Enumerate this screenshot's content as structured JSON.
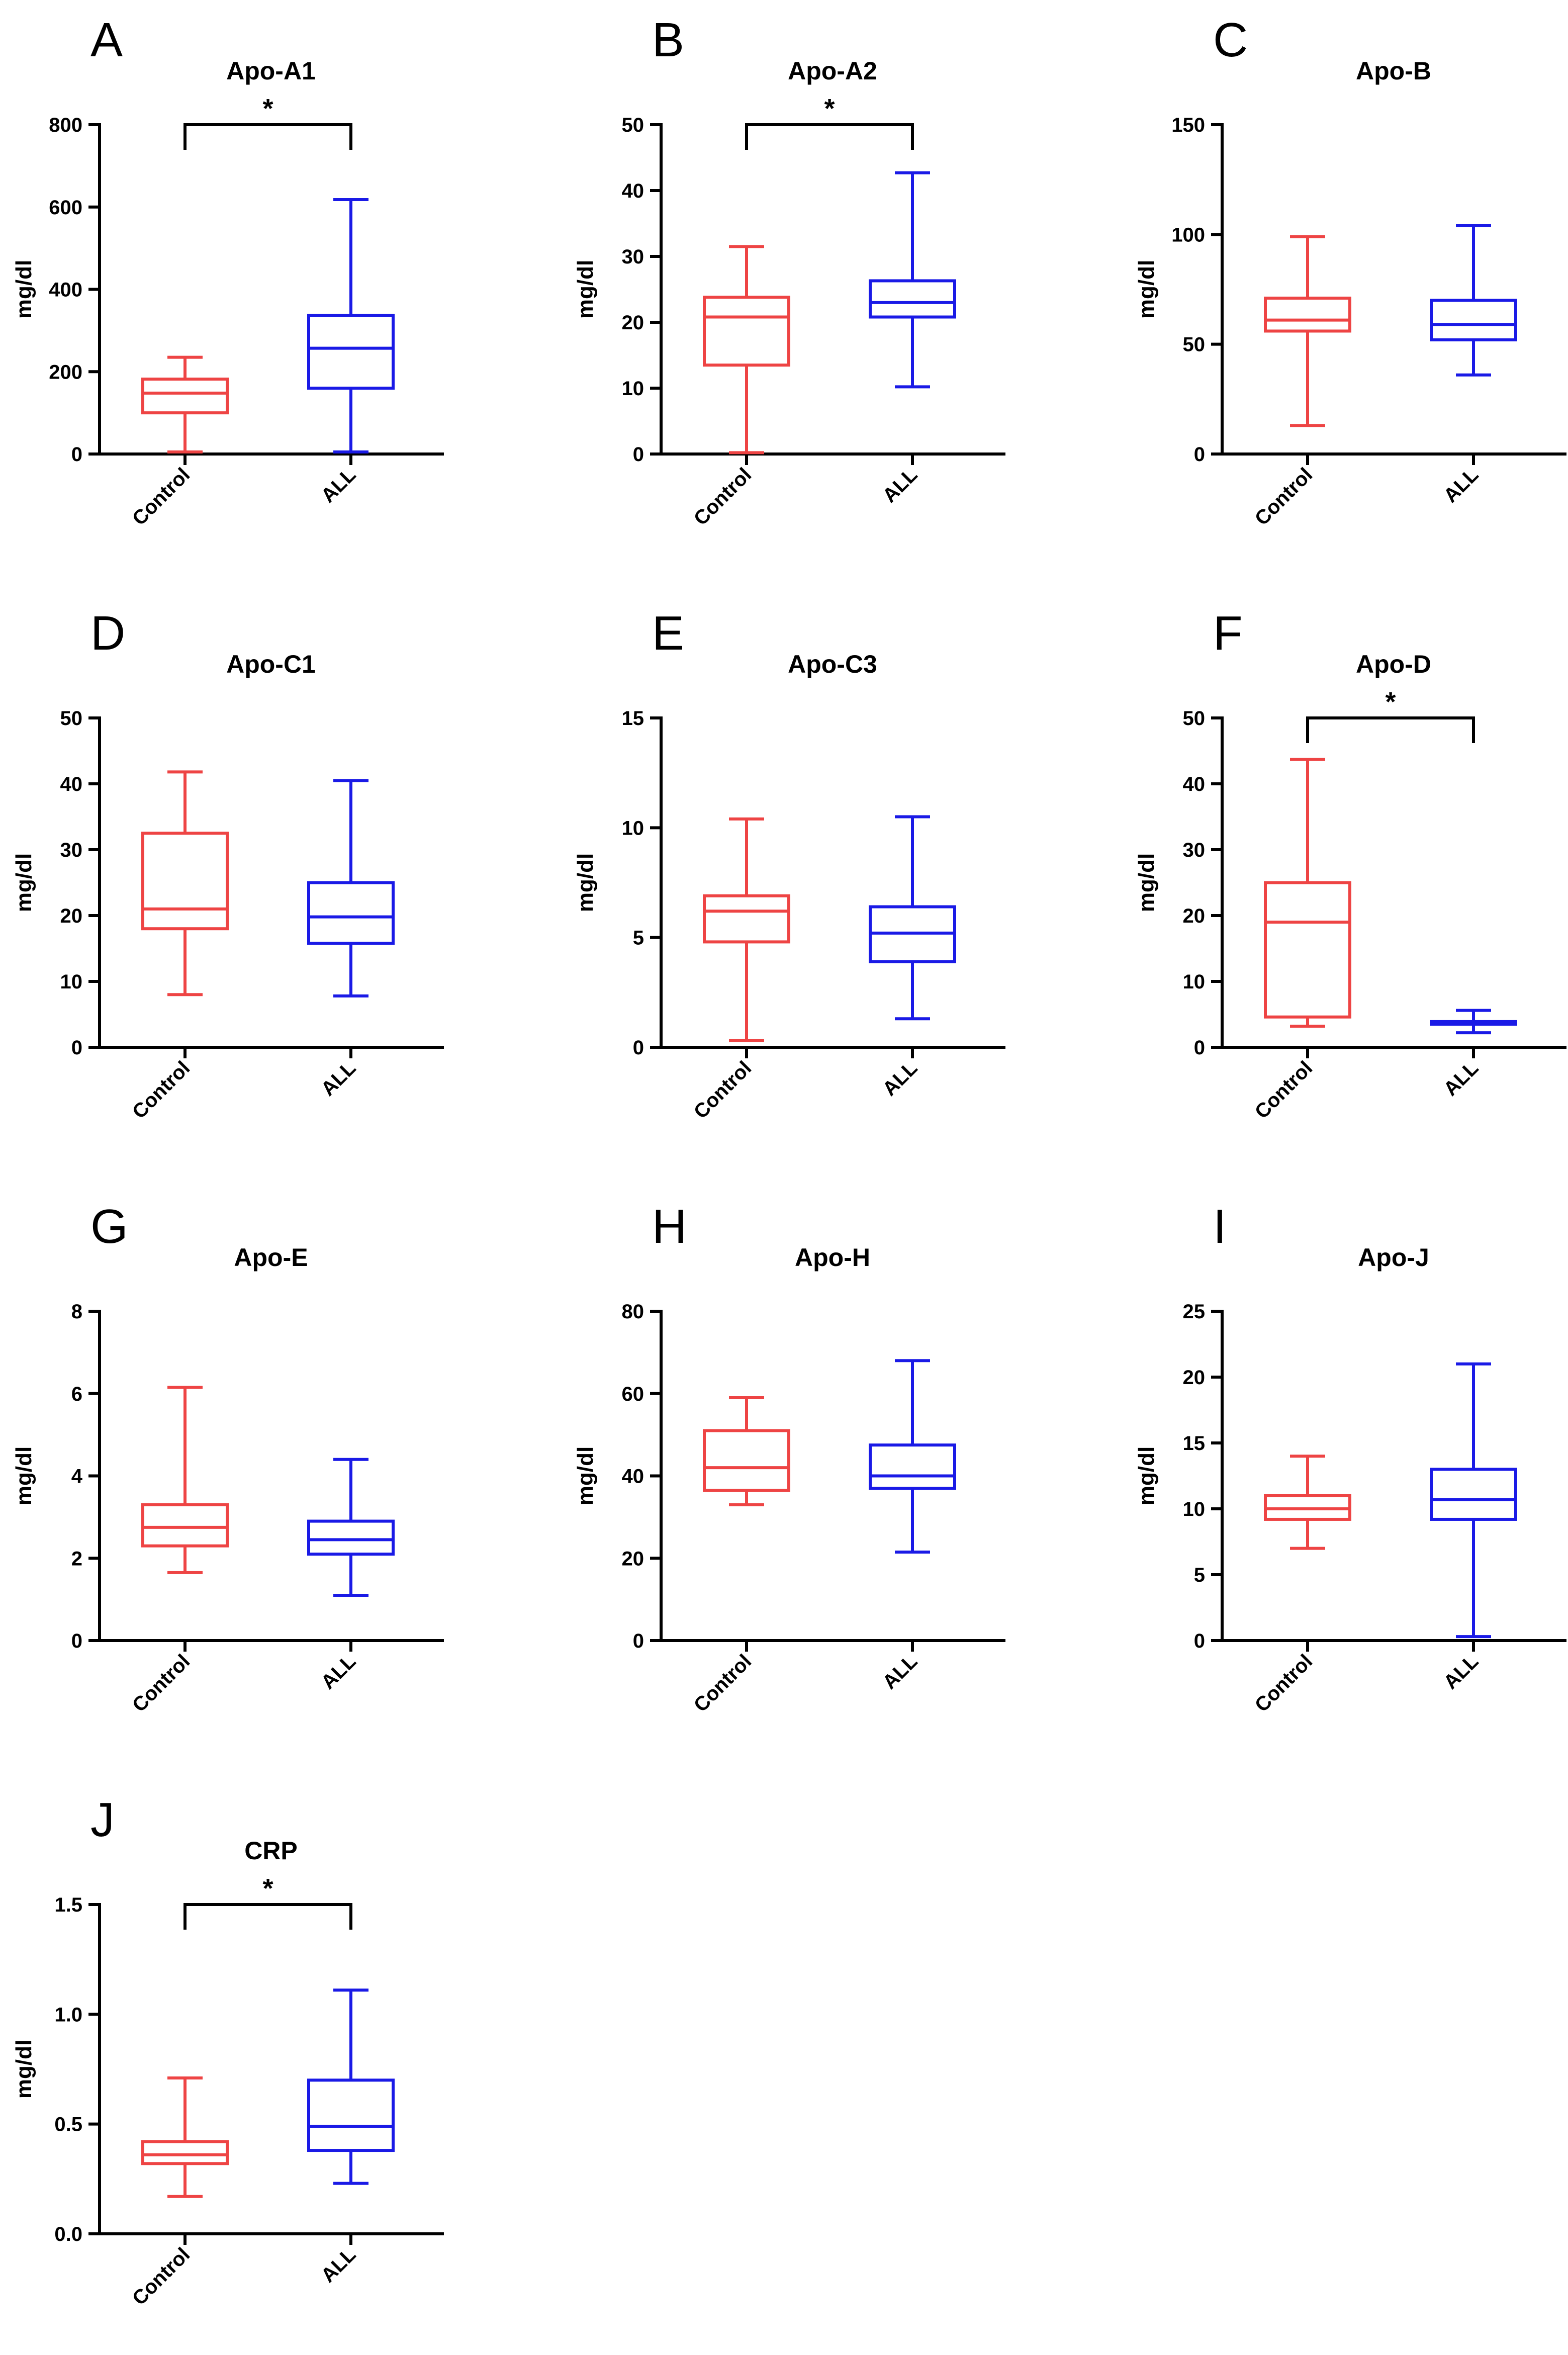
{
  "colors": {
    "control": "#ee4444",
    "all": "#1a1ae6",
    "axis": "#000000"
  },
  "chart_data": [
    {
      "type": "boxplot",
      "letter": "A",
      "title": "Apo-A1",
      "ylabel": "mg/dl",
      "xlabel": "",
      "ylim": [
        0,
        800
      ],
      "yticks": [
        0,
        200,
        400,
        600,
        800
      ],
      "categories": [
        "Control",
        "ALL"
      ],
      "boxes": [
        {
          "name": "Control",
          "min": 5,
          "q1": 100,
          "median": 148,
          "q3": 182,
          "max": 235
        },
        {
          "name": "ALL",
          "min": 5,
          "q1": 160,
          "median": 257,
          "q3": 337,
          "max": 618
        }
      ],
      "significance": "*"
    },
    {
      "type": "boxplot",
      "letter": "B",
      "title": "Apo-A2",
      "ylabel": "mg/dl",
      "xlabel": "",
      "ylim": [
        0,
        50
      ],
      "yticks": [
        0,
        10,
        20,
        30,
        40,
        50
      ],
      "categories": [
        "Control",
        "ALL"
      ],
      "boxes": [
        {
          "name": "Control",
          "min": 0.2,
          "q1": 13.5,
          "median": 20.8,
          "q3": 23.8,
          "max": 31.5
        },
        {
          "name": "ALL",
          "min": 10.2,
          "q1": 20.8,
          "median": 23.0,
          "q3": 26.3,
          "max": 42.7
        }
      ],
      "significance": "*"
    },
    {
      "type": "boxplot",
      "letter": "C",
      "title": "Apo-B",
      "ylabel": "mg/dl",
      "xlabel": "",
      "ylim": [
        0,
        150
      ],
      "yticks": [
        0,
        50,
        100,
        150
      ],
      "categories": [
        "Control",
        "ALL"
      ],
      "boxes": [
        {
          "name": "Control",
          "min": 13,
          "q1": 56,
          "median": 61,
          "q3": 71,
          "max": 99
        },
        {
          "name": "ALL",
          "min": 36,
          "q1": 52,
          "median": 59,
          "q3": 70,
          "max": 104
        }
      ],
      "significance": ""
    },
    {
      "type": "boxplot",
      "letter": "D",
      "title": "Apo-C1",
      "ylabel": "mg/dl",
      "xlabel": "",
      "ylim": [
        0,
        50
      ],
      "yticks": [
        0,
        10,
        20,
        30,
        40,
        50
      ],
      "categories": [
        "Control",
        "ALL"
      ],
      "boxes": [
        {
          "name": "Control",
          "min": 8,
          "q1": 18,
          "median": 21,
          "q3": 32.5,
          "max": 41.8
        },
        {
          "name": "ALL",
          "min": 7.8,
          "q1": 15.8,
          "median": 19.8,
          "q3": 25,
          "max": 40.5
        }
      ],
      "significance": ""
    },
    {
      "type": "boxplot",
      "letter": "E",
      "title": "Apo-C3",
      "ylabel": "mg/dl",
      "xlabel": "",
      "ylim": [
        0,
        15
      ],
      "yticks": [
        0,
        5,
        10,
        15
      ],
      "categories": [
        "Control",
        "ALL"
      ],
      "boxes": [
        {
          "name": "Control",
          "min": 0.3,
          "q1": 4.8,
          "median": 6.2,
          "q3": 6.9,
          "max": 10.4
        },
        {
          "name": "ALL",
          "min": 1.3,
          "q1": 3.9,
          "median": 5.2,
          "q3": 6.4,
          "max": 10.5
        }
      ],
      "significance": ""
    },
    {
      "type": "boxplot",
      "letter": "F",
      "title": "Apo-D",
      "ylabel": "mg/dl",
      "xlabel": "",
      "ylim": [
        0,
        50
      ],
      "yticks": [
        0,
        10,
        20,
        30,
        40,
        50
      ],
      "categories": [
        "Control",
        "ALL"
      ],
      "boxes": [
        {
          "name": "Control",
          "min": 3.2,
          "q1": 4.6,
          "median": 19,
          "q3": 25,
          "max": 43.7
        },
        {
          "name": "ALL",
          "min": 2.2,
          "q1": 3.5,
          "median": 3.7,
          "q3": 3.9,
          "max": 5.6
        }
      ],
      "significance": "*"
    },
    {
      "type": "boxplot",
      "letter": "G",
      "title": "Apo-E",
      "ylabel": "mg/dl",
      "xlabel": "",
      "ylim": [
        0,
        8
      ],
      "yticks": [
        0,
        2,
        4,
        6,
        8
      ],
      "categories": [
        "Control",
        "ALL"
      ],
      "boxes": [
        {
          "name": "Control",
          "min": 1.65,
          "q1": 2.3,
          "median": 2.75,
          "q3": 3.3,
          "max": 6.15
        },
        {
          "name": "ALL",
          "min": 1.1,
          "q1": 2.1,
          "median": 2.45,
          "q3": 2.9,
          "max": 4.4
        }
      ],
      "significance": ""
    },
    {
      "type": "boxplot",
      "letter": "H",
      "title": "Apo-H",
      "ylabel": "mg/dl",
      "xlabel": "",
      "ylim": [
        0,
        80
      ],
      "yticks": [
        0,
        20,
        40,
        60,
        80
      ],
      "categories": [
        "Control",
        "ALL"
      ],
      "boxes": [
        {
          "name": "Control",
          "min": 33,
          "q1": 36.5,
          "median": 42,
          "q3": 51,
          "max": 59
        },
        {
          "name": "ALL",
          "min": 21.5,
          "q1": 37,
          "median": 40,
          "q3": 47.5,
          "max": 68
        }
      ],
      "significance": ""
    },
    {
      "type": "boxplot",
      "letter": "I",
      "title": "Apo-J",
      "ylabel": "mg/dl",
      "xlabel": "",
      "ylim": [
        0,
        25
      ],
      "yticks": [
        0,
        5,
        10,
        15,
        20,
        25
      ],
      "categories": [
        "Control",
        "ALL"
      ],
      "boxes": [
        {
          "name": "Control",
          "min": 7,
          "q1": 9.2,
          "median": 10,
          "q3": 11,
          "max": 14
        },
        {
          "name": "ALL",
          "min": 0.3,
          "q1": 9.2,
          "median": 10.7,
          "q3": 13,
          "max": 21
        }
      ],
      "significance": ""
    },
    {
      "type": "boxplot",
      "letter": "J",
      "title": "CRP",
      "ylabel": "mg/dl",
      "xlabel": "",
      "ylim": [
        0,
        1.5
      ],
      "yticks": [
        0.0,
        0.5,
        1.0,
        1.5
      ],
      "ytick_labels": [
        "0.0",
        "0.5",
        "1.0",
        "1.5"
      ],
      "categories": [
        "Control",
        "ALL"
      ],
      "boxes": [
        {
          "name": "Control",
          "min": 0.17,
          "q1": 0.32,
          "median": 0.36,
          "q3": 0.42,
          "max": 0.71
        },
        {
          "name": "ALL",
          "min": 0.23,
          "q1": 0.38,
          "median": 0.49,
          "q3": 0.7,
          "max": 1.11
        }
      ],
      "significance": "*"
    }
  ]
}
